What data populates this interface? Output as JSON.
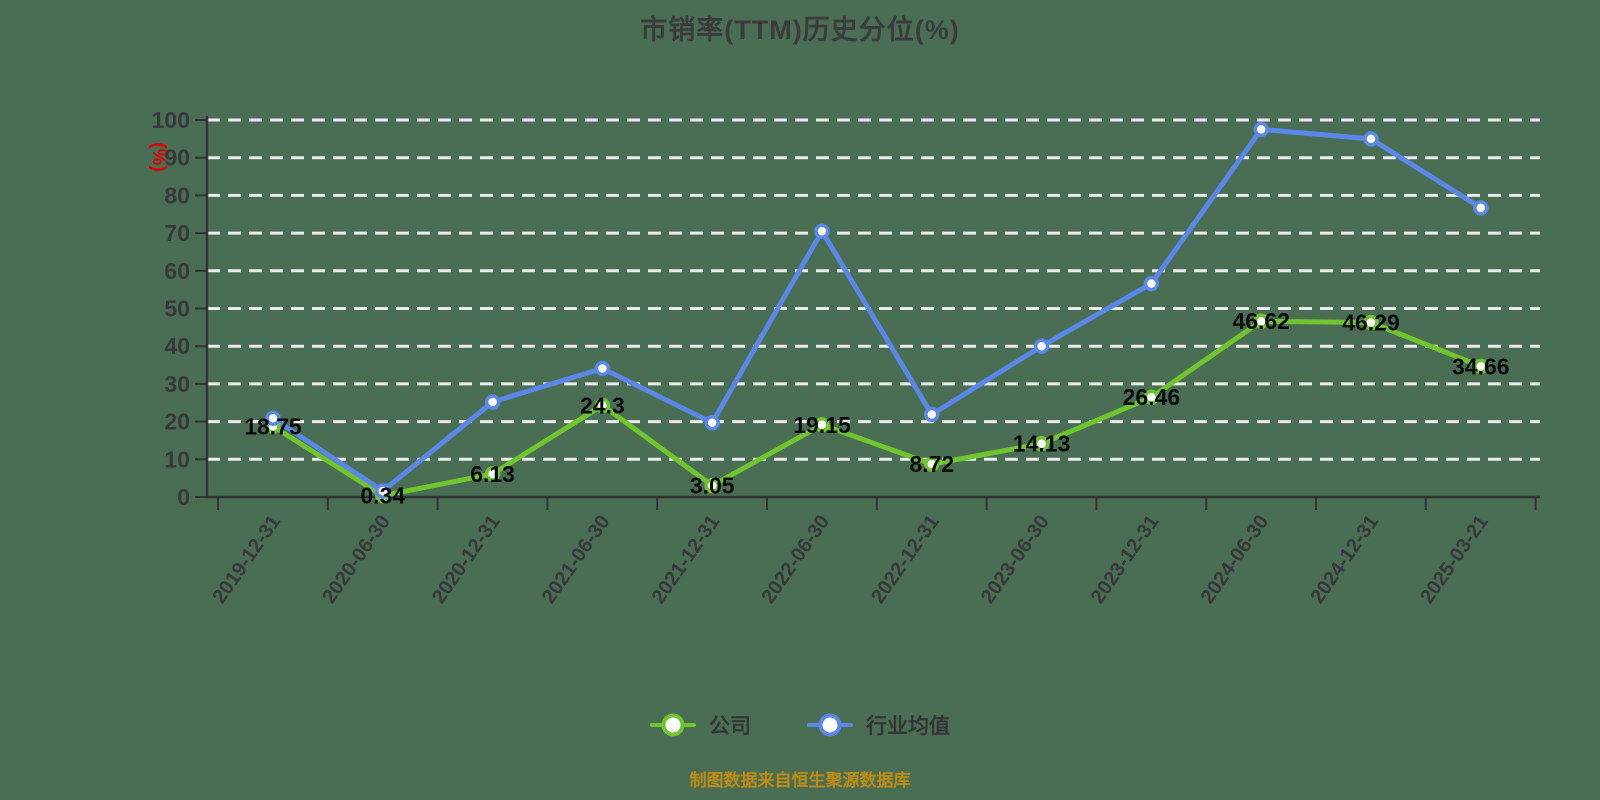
{
  "title": "市销率(TTM)历史分位(%)",
  "y_axis_unit": "(%)",
  "source_note": "制图数据来自恒生聚源数据库",
  "chart_data": {
    "type": "line",
    "title": "市销率(TTM)历史分位(%)",
    "categories": [
      "2019-12-31",
      "2020-06-30",
      "2020-12-31",
      "2021-06-30",
      "2021-12-31",
      "2022-06-30",
      "2022-12-31",
      "2023-06-30",
      "2023-12-31",
      "2024-06-30",
      "2024-12-31",
      "2025-03-21"
    ],
    "series": [
      {
        "key": "company",
        "name": "公司",
        "color": "#70C42E",
        "labels_visible": true,
        "values": [
          18.75,
          0.34,
          6.13,
          24.3,
          3.05,
          19.15,
          8.72,
          14.13,
          26.46,
          46.62,
          46.29,
          34.66
        ]
      },
      {
        "key": "industry",
        "name": "行业均值",
        "color": "#5A87E8",
        "labels_visible": false,
        "values": [
          20.9,
          1.6,
          25.2,
          34.1,
          19.7,
          70.5,
          21.9,
          40,
          56.6,
          97.5,
          95,
          76.7
        ]
      }
    ],
    "ylabel": "(%)",
    "ylim": [
      0,
      100
    ],
    "y_ticks": [
      0,
      10,
      20,
      30,
      40,
      50,
      60,
      70,
      80,
      90,
      100
    ],
    "grid": "horizontal-dashed",
    "legend_position": "bottom",
    "colors": {
      "background": "#496E54",
      "axis": "#333333",
      "tick_label": "#383838",
      "grid": "#ECECEC",
      "data_label": "#0A0A0A",
      "title": "#3B3B3B",
      "unit_label": "#E00000",
      "source_note": "#BE8C12"
    }
  }
}
